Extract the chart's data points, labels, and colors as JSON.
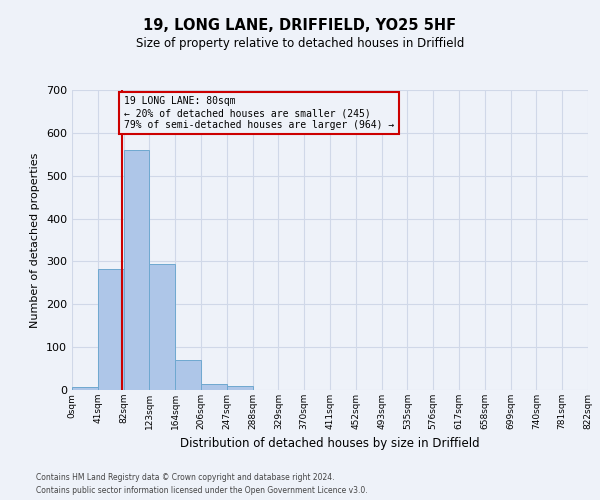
{
  "title1": "19, LONG LANE, DRIFFIELD, YO25 5HF",
  "title2": "Size of property relative to detached houses in Driffield",
  "xlabel": "Distribution of detached houses by size in Driffield",
  "ylabel": "Number of detached properties",
  "footnote1": "Contains HM Land Registry data © Crown copyright and database right 2024.",
  "footnote2": "Contains public sector information licensed under the Open Government Licence v3.0.",
  "bar_values": [
    8,
    283,
    560,
    293,
    70,
    14,
    9,
    0,
    0,
    0,
    0,
    0,
    0,
    0,
    0,
    0,
    0,
    0,
    0,
    0
  ],
  "bin_labels": [
    "0sqm",
    "41sqm",
    "82sqm",
    "123sqm",
    "164sqm",
    "206sqm",
    "247sqm",
    "288sqm",
    "329sqm",
    "370sqm",
    "411sqm",
    "452sqm",
    "493sqm",
    "535sqm",
    "576sqm",
    "617sqm",
    "658sqm",
    "699sqm",
    "740sqm",
    "781sqm",
    "822sqm"
  ],
  "bar_color": "#aec6e8",
  "bar_edge_color": "#6fa8d0",
  "grid_color": "#d0d8e8",
  "bg_color": "#eef2f9",
  "vline_x": 80,
  "vline_color": "#cc0000",
  "annotation_text": "19 LONG LANE: 80sqm\n← 20% of detached houses are smaller (245)\n79% of semi-detached houses are larger (964) →",
  "annotation_box_color": "#cc0000",
  "ylim": [
    0,
    700
  ],
  "yticks": [
    0,
    100,
    200,
    300,
    400,
    500,
    600,
    700
  ],
  "bin_width": 41
}
